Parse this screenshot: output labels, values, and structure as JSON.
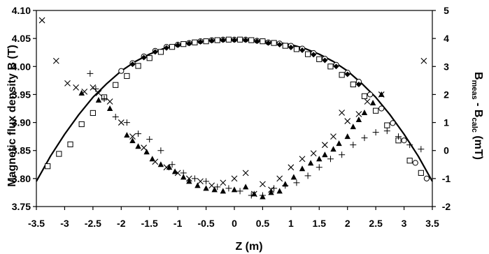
{
  "chart_data": {
    "type": "scatter",
    "xlabel": "Z (m)",
    "ylabel": "Magnetic flux density B (T)",
    "y2label": {
      "base": "B",
      "sub1": "meas",
      "mid": " - B",
      "sub2": "calc",
      "unit": " (mT)"
    },
    "xlim": [
      -3.5,
      3.5
    ],
    "ylim": [
      3.75,
      4.1
    ],
    "y2lim": [
      -2,
      5
    ],
    "xticks": [
      "-3.5",
      "-3",
      "-2.5",
      "-2",
      "-1.5",
      "-1",
      "-0.5",
      "0",
      "0.5",
      "1",
      "1.5",
      "2",
      "2.5",
      "3",
      "3.5"
    ],
    "yticks": [
      "3.75",
      "3.80",
      "3.85",
      "3.90",
      "3.95",
      "4.00",
      "4.05",
      "4.10"
    ],
    "y2ticks": [
      "-2",
      "-1",
      "0",
      "1",
      "2",
      "3",
      "4",
      "5"
    ],
    "grid": false,
    "curve": {
      "axis": "left",
      "style": "line",
      "x": [
        -3.5,
        -3.25,
        -3.0,
        -2.75,
        -2.5,
        -2.25,
        -2.0,
        -1.75,
        -1.5,
        -1.25,
        -1.0,
        -0.75,
        -0.5,
        -0.25,
        0.0,
        0.25,
        0.5,
        0.75,
        1.0,
        1.25,
        1.5,
        1.75,
        2.0,
        2.25,
        2.5,
        2.75,
        3.0,
        3.25,
        3.5
      ],
      "y": [
        3.795,
        3.84,
        3.879,
        3.914,
        3.945,
        3.97,
        3.992,
        4.009,
        4.022,
        4.032,
        4.039,
        4.043,
        4.046,
        4.048,
        4.048,
        4.048,
        4.046,
        4.043,
        4.039,
        4.032,
        4.022,
        4.009,
        3.992,
        3.97,
        3.945,
        3.914,
        3.879,
        3.84,
        3.795
      ]
    },
    "series": [
      {
        "axis": "left",
        "marker": "square",
        "x": [
          -3.3,
          -3.1,
          -2.9,
          -2.7,
          -2.5,
          -2.3,
          -2.1,
          -1.9,
          -1.7,
          -1.5,
          -1.3,
          -1.1,
          -0.9,
          -0.7,
          -0.5,
          -0.3,
          -0.1,
          0.1,
          0.3,
          0.5,
          0.7,
          0.9,
          1.1,
          1.3,
          1.5,
          1.7,
          1.9,
          2.1,
          2.3,
          2.5,
          2.7,
          2.9,
          3.1,
          3.3
        ],
        "y": [
          3.822,
          3.844,
          3.861,
          3.897,
          3.917,
          3.945,
          3.967,
          3.983,
          4.001,
          4.015,
          4.026,
          4.035,
          4.04,
          4.043,
          4.045,
          4.047,
          4.048,
          4.048,
          4.047,
          4.045,
          4.042,
          4.037,
          4.031,
          4.022,
          4.013,
          4.0,
          3.985,
          3.968,
          3.947,
          3.921,
          3.895,
          3.868,
          3.832,
          3.81
        ]
      },
      {
        "axis": "left",
        "marker": "circle",
        "x": [
          -2.0,
          -1.8,
          -1.6,
          -1.4,
          -1.2,
          -1.0,
          -0.8,
          -0.6,
          -0.4,
          -0.2,
          0.0,
          0.2,
          0.4,
          0.6,
          0.8,
          1.0,
          1.2,
          1.4,
          1.6,
          1.8,
          2.0,
          2.2,
          2.4,
          2.6,
          2.8,
          3.0,
          3.2,
          3.4
        ],
        "y": [
          3.992,
          4.006,
          4.018,
          4.028,
          4.035,
          4.039,
          4.042,
          4.045,
          4.047,
          4.048,
          4.048,
          4.048,
          4.046,
          4.043,
          4.041,
          4.037,
          4.032,
          4.024,
          4.014,
          4.003,
          3.989,
          3.973,
          3.95,
          3.925,
          3.899,
          3.868,
          3.828,
          3.8
        ]
      },
      {
        "axis": "left",
        "marker": "diamond",
        "x": [
          -1.8,
          -1.6,
          -1.4,
          -1.2,
          -1.0,
          -0.8,
          -0.6,
          -0.4,
          -0.2,
          0.0,
          0.2,
          0.4,
          0.6,
          0.8,
          1.0,
          1.2,
          1.4,
          1.6,
          1.8,
          2.0,
          2.2
        ],
        "y": [
          4.004,
          4.016,
          4.026,
          4.033,
          4.038,
          4.041,
          4.044,
          4.046,
          4.047,
          4.047,
          4.047,
          4.045,
          4.042,
          4.039,
          4.034,
          4.029,
          4.021,
          4.011,
          4.0,
          3.986,
          3.968
        ]
      },
      {
        "axis": "right",
        "marker": "cross",
        "x": [
          -3.4,
          -3.15,
          -2.95,
          -2.8,
          -2.65,
          -2.5,
          -2.4,
          -2.2,
          -2.0,
          -1.8,
          -1.6,
          -1.4,
          -1.2,
          -1.0,
          -0.8,
          -0.6,
          -0.4,
          -0.2,
          0.0,
          0.2,
          0.35,
          0.5,
          0.65,
          0.8,
          1.0,
          1.2,
          1.4,
          1.6,
          1.75,
          1.9,
          2.0,
          2.2,
          2.35,
          2.6,
          3.35
        ],
        "y": [
          4.65,
          3.2,
          2.4,
          2.25,
          2.1,
          2.25,
          2.05,
          1.75,
          1.0,
          0.5,
          0.1,
          -0.4,
          -0.6,
          -0.8,
          -1.0,
          -1.1,
          -1.25,
          -1.15,
          -1.0,
          -0.8,
          -1.55,
          -1.2,
          -1.4,
          -1.0,
          -0.6,
          -0.3,
          -0.1,
          0.2,
          0.5,
          1.35,
          1.05,
          1.3,
          1.75,
          2.0,
          3.2
        ]
      },
      {
        "axis": "right",
        "marker": "plus",
        "x": [
          -2.55,
          -2.45,
          -2.3,
          -2.1,
          -1.9,
          -1.7,
          -1.5,
          -1.3,
          -1.1,
          -0.9,
          -0.7,
          -0.5,
          -0.3,
          -0.1,
          0.1,
          0.3,
          0.5,
          0.7,
          0.9,
          1.1,
          1.3,
          1.5,
          1.7,
          1.9,
          2.1,
          2.3,
          2.5,
          2.7,
          2.9,
          3.1,
          3.3
        ],
        "y": [
          2.75,
          2.2,
          1.85,
          1.2,
          1.0,
          0.6,
          0.4,
          0.0,
          -0.5,
          -0.8,
          -1.0,
          -1.1,
          -1.3,
          -1.35,
          -1.45,
          -1.6,
          -1.6,
          -1.35,
          -1.25,
          -1.15,
          -0.9,
          -0.6,
          -0.3,
          -0.15,
          0.2,
          0.45,
          0.65,
          0.7,
          0.5,
          0.2,
          0.05
        ]
      },
      {
        "axis": "right",
        "marker": "triangle",
        "x": [
          -2.7,
          -2.4,
          -2.2,
          -1.9,
          -1.8,
          -1.7,
          -1.55,
          -1.45,
          -1.3,
          -1.15,
          -1.05,
          -0.9,
          -0.8,
          -0.65,
          -0.5,
          -0.35,
          -0.2,
          0.0,
          0.2,
          0.35,
          0.5,
          0.65,
          0.8,
          0.9,
          1.05,
          1.2,
          1.35,
          1.5,
          1.6,
          1.75,
          1.85,
          2.0,
          2.1,
          2.2,
          2.3,
          2.45,
          2.6
        ],
        "y": [
          2.05,
          1.8,
          1.5,
          0.55,
          0.35,
          0.15,
          -0.05,
          -0.3,
          -0.5,
          -0.6,
          -0.75,
          -0.95,
          -1.1,
          -1.25,
          -1.35,
          -1.4,
          -1.45,
          -1.4,
          -1.3,
          -1.55,
          -1.65,
          -1.5,
          -1.45,
          -1.2,
          -0.95,
          -0.65,
          -0.45,
          -0.3,
          -0.15,
          0.05,
          0.25,
          0.5,
          0.85,
          1.1,
          1.35,
          1.7,
          2.0
        ]
      }
    ]
  }
}
